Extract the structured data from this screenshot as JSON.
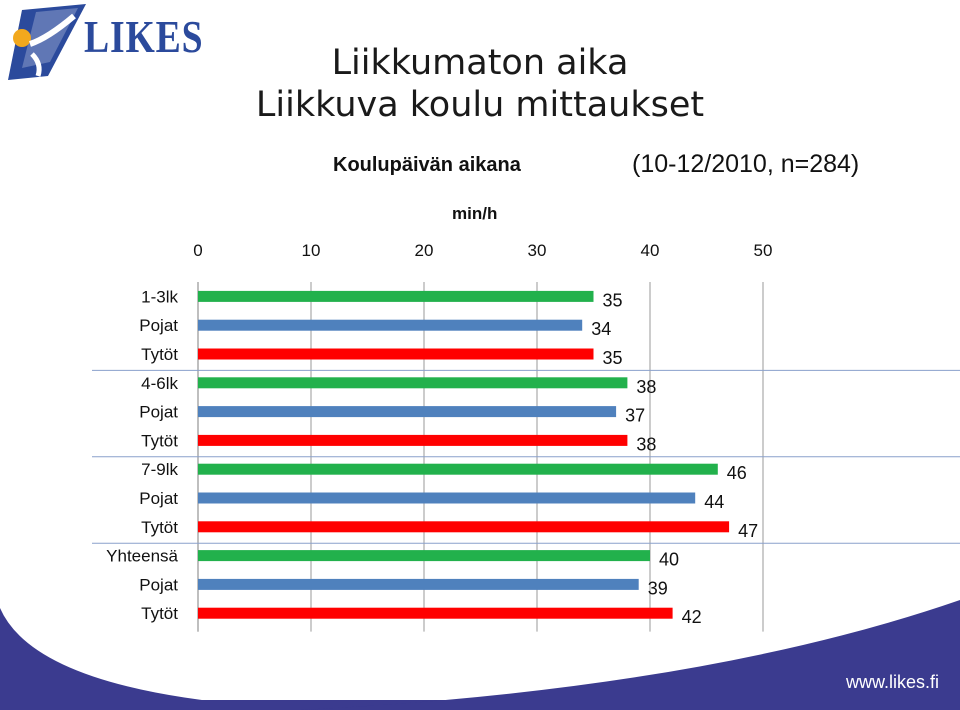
{
  "logo": {
    "text": "LIKES"
  },
  "header": {
    "title_line1": "Liikkumaton aika",
    "title_line2": "Liikkuva koulu mittaukset"
  },
  "chart_data": {
    "type": "bar",
    "orientation": "horizontal",
    "title": "Koulupäivän aikana",
    "period": "(10-12/2010, n=284)",
    "xlabel": "min/h",
    "xlim": [
      0,
      50
    ],
    "xticks": [
      0,
      10,
      20,
      30,
      40,
      50
    ],
    "grid": true,
    "categories": [
      "1-3lk",
      "Pojat",
      "Tytöt",
      "4-6lk",
      "Pojat",
      "Tytöt",
      "7-9lk",
      "Pojat",
      "Tytöt",
      "Yhteensä",
      "Pojat",
      "Tytöt"
    ],
    "values": [
      35,
      34,
      35,
      38,
      37,
      38,
      46,
      44,
      47,
      40,
      39,
      42
    ],
    "value_labels": [
      "35",
      "34",
      "35",
      "38",
      "37",
      "38",
      "46",
      "44",
      "47",
      "40",
      "39",
      "42"
    ],
    "colors": [
      "#22b14c",
      "#4f81bd",
      "#ff0000",
      "#22b14c",
      "#4f81bd",
      "#ff0000",
      "#22b14c",
      "#4f81bd",
      "#ff0000",
      "#22b14c",
      "#4f81bd",
      "#ff0000"
    ]
  },
  "footer": {
    "url": "www.likes.fi",
    "color": "#3b3b8f"
  }
}
